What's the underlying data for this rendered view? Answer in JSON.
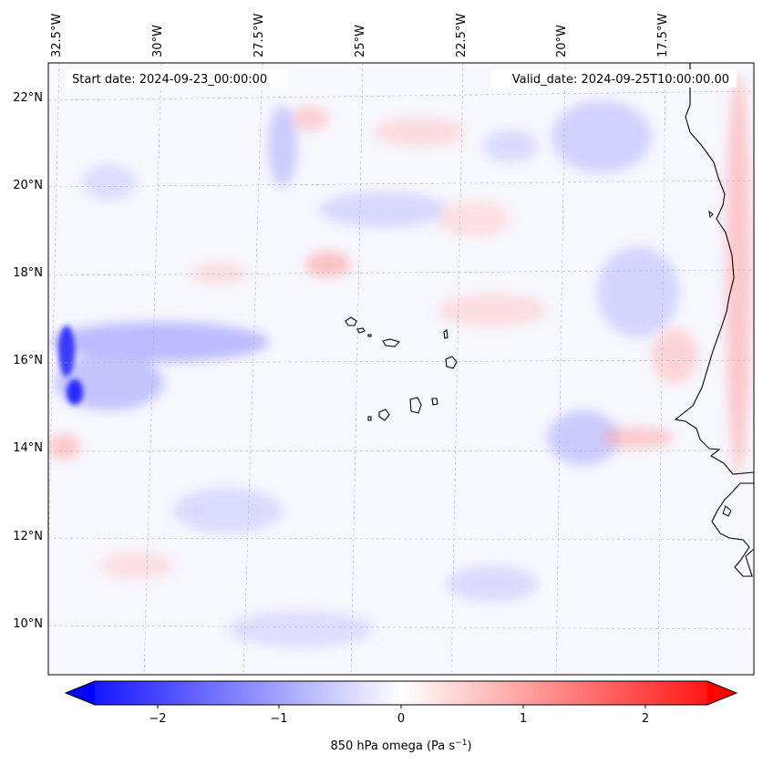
{
  "map": {
    "start_date_text": "Start date: 2024-09-23_00:00:00",
    "valid_date_text": "Valid_date: 2024-09-25T10:00:00.00",
    "lon_labels": [
      "32.5°W",
      "30°W",
      "27.5°W",
      "25°W",
      "22.5°W",
      "20°W",
      "17.5°W"
    ],
    "lat_labels": [
      "22°N",
      "20°N",
      "18°N",
      "16°N",
      "14°N",
      "12°N",
      "10°N"
    ],
    "field": "850 hPa omega",
    "colormap": "bwr",
    "ocean_color": "#f7f7fe"
  },
  "colorbar": {
    "ticks": [
      "−2",
      "−1",
      "0",
      "1",
      "2"
    ],
    "label_main": "850 hPa omega (Pa s",
    "label_exp": "−1",
    "label_close": ")",
    "min_color": "#0000ff",
    "mid_color": "#ffffff",
    "max_color": "#ff0000"
  }
}
